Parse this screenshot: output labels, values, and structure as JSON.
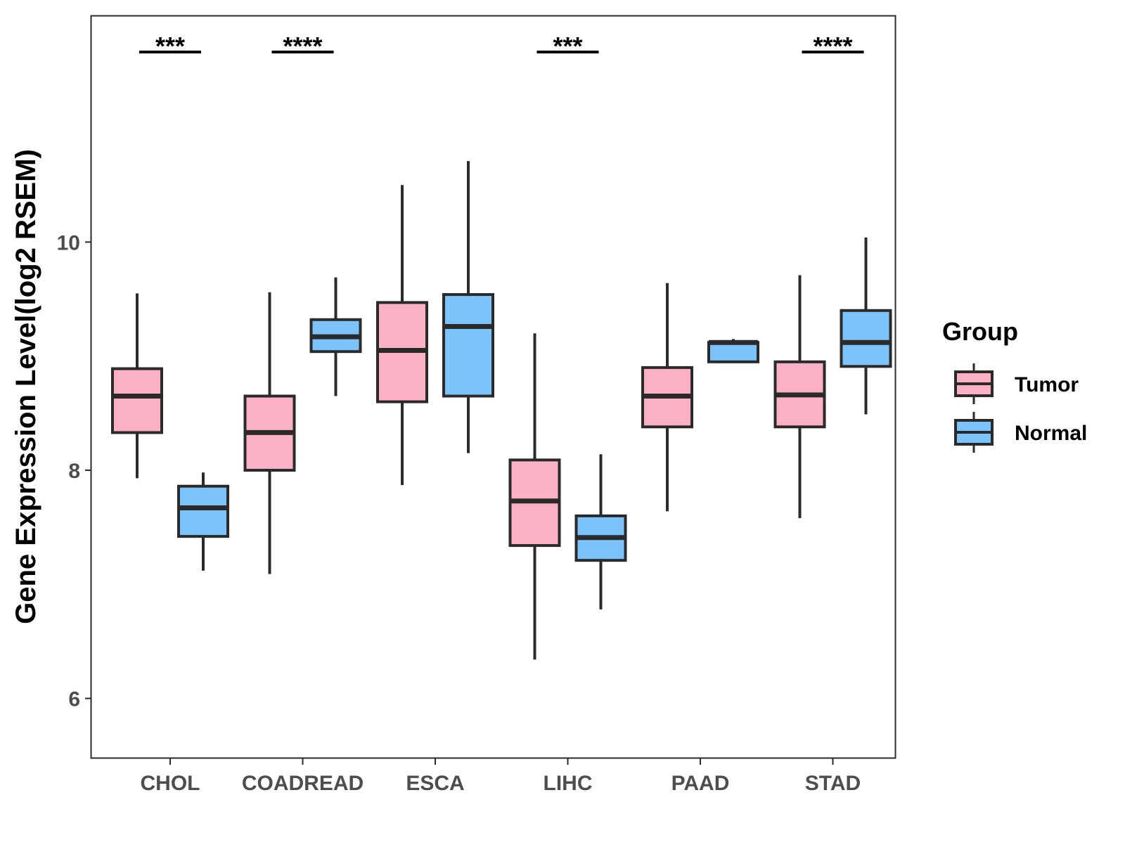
{
  "chart_data": {
    "type": "box",
    "title": "",
    "xlabel": "",
    "ylabel": "Gene Expression Level(log2 RSEM)",
    "categories": [
      "CHOL",
      "COADREAD",
      "ESCA",
      "LIHC",
      "PAAD",
      "STAD"
    ],
    "ylim": [
      5.48,
      11.98
    ],
    "y_ticks": [
      6,
      8,
      10
    ],
    "grid": false,
    "legend": {
      "title": "Group",
      "position": "right",
      "entries": [
        "Tumor",
        "Normal"
      ]
    },
    "colors": {
      "Tumor": "#FBB1C3",
      "Normal": "#7BC3FA",
      "outline": "#2a2a2a"
    },
    "series": [
      {
        "name": "Tumor",
        "boxes": [
          {
            "category": "CHOL",
            "whisker_low": 7.93,
            "q1": 8.33,
            "median": 8.65,
            "q3": 8.89,
            "whisker_high": 9.55
          },
          {
            "category": "COADREAD",
            "whisker_low": 7.09,
            "q1": 8.0,
            "median": 8.33,
            "q3": 8.65,
            "whisker_high": 9.56
          },
          {
            "category": "ESCA",
            "whisker_low": 7.87,
            "q1": 8.6,
            "median": 9.05,
            "q3": 9.47,
            "whisker_high": 10.5
          },
          {
            "category": "LIHC",
            "whisker_low": 6.34,
            "q1": 7.34,
            "median": 7.73,
            "q3": 8.09,
            "whisker_high": 9.2
          },
          {
            "category": "PAAD",
            "whisker_low": 7.64,
            "q1": 8.38,
            "median": 8.65,
            "q3": 8.9,
            "whisker_high": 9.64
          },
          {
            "category": "STAD",
            "whisker_low": 7.58,
            "q1": 8.38,
            "median": 8.66,
            "q3": 8.95,
            "whisker_high": 9.71
          }
        ]
      },
      {
        "name": "Normal",
        "boxes": [
          {
            "category": "CHOL",
            "whisker_low": 7.12,
            "q1": 7.42,
            "median": 7.67,
            "q3": 7.86,
            "whisker_high": 7.98
          },
          {
            "category": "COADREAD",
            "whisker_low": 8.65,
            "q1": 9.04,
            "median": 9.17,
            "q3": 9.32,
            "whisker_high": 9.69
          },
          {
            "category": "ESCA",
            "whisker_low": 8.15,
            "q1": 8.65,
            "median": 9.26,
            "q3": 9.54,
            "whisker_high": 10.71
          },
          {
            "category": "LIHC",
            "whisker_low": 6.78,
            "q1": 7.21,
            "median": 7.41,
            "q3": 7.6,
            "whisker_high": 8.14
          },
          {
            "category": "PAAD",
            "whisker_low": 8.95,
            "q1": 8.95,
            "median": 9.12,
            "q3": 9.12,
            "whisker_high": 9.15
          },
          {
            "category": "STAD",
            "whisker_low": 8.49,
            "q1": 8.91,
            "median": 9.12,
            "q3": 9.4,
            "whisker_high": 10.04
          }
        ]
      }
    ],
    "annotations": [
      {
        "category": "CHOL",
        "text": "***"
      },
      {
        "category": "COADREAD",
        "text": "****"
      },
      {
        "category": "LIHC",
        "text": "***"
      },
      {
        "category": "STAD",
        "text": "****"
      }
    ]
  }
}
